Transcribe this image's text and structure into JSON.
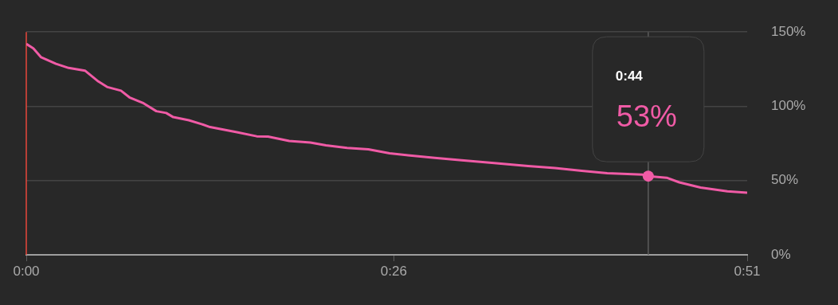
{
  "chart_data": {
    "type": "line",
    "x": [
      0,
      0.5,
      1.05,
      2.1,
      3,
      4.15,
      5.1,
      5.75,
      6.7,
      7.3,
      8.3,
      9.2,
      9.9,
      10.4,
      11.5,
      12.4,
      13,
      14.9,
      16.3,
      17.1,
      18.6,
      20.1,
      21.2,
      22.7,
      24.2,
      25.7,
      27,
      28.9,
      30.8,
      33.1,
      35.5,
      37.4,
      39.3,
      41.1,
      43.6,
      44,
      45.3,
      46.2,
      47.7,
      49.6,
      51
    ],
    "series": [
      {
        "color": "#f05ba6",
        "values": [
          142,
          139,
          133,
          128.6,
          125.8,
          124,
          116.7,
          112.9,
          110.5,
          106,
          102,
          96.7,
          95.5,
          92.7,
          90.6,
          88,
          86,
          82.6,
          79.8,
          79.6,
          76.7,
          75.6,
          73.7,
          72,
          71,
          68.3,
          67,
          65.3,
          63.6,
          61.8,
          59.8,
          58.4,
          56.6,
          54.9,
          54,
          53,
          51.9,
          48.8,
          45.3,
          42.7,
          41.8
        ]
      },
      {
        "type": "scatter",
        "color": "#f05ba6",
        "x": [
          44
        ],
        "values": [
          53
        ],
        "marker": "circle"
      }
    ],
    "xlim": [
      0,
      51
    ],
    "xticks": [
      {
        "value": 0,
        "label": "0:00"
      },
      {
        "value": 26,
        "label": "0:26"
      },
      {
        "value": 51,
        "label": "0:51"
      }
    ],
    "ylim": [
      0,
      150
    ],
    "yticks": [
      {
        "value": 0,
        "label": "0%"
      },
      {
        "value": 50,
        "label": "50%"
      },
      {
        "value": 100,
        "label": "100%"
      },
      {
        "value": 150,
        "label": "150%"
      }
    ],
    "grid": "y",
    "marker": "none",
    "line_style": "solid",
    "ref_lines": [
      {
        "axis": "x",
        "value": 0,
        "color": "#e8473b"
      },
      {
        "axis": "x",
        "value": 44,
        "color": "#5c5c5c"
      }
    ],
    "annotations": [
      "0:44",
      "53%"
    ]
  }
}
